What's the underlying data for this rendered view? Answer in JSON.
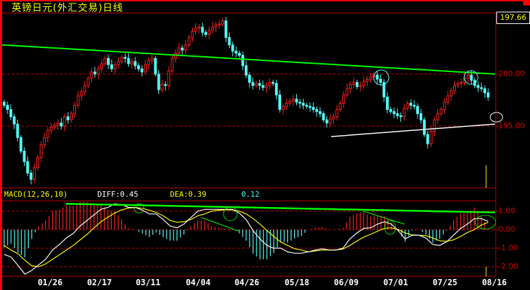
{
  "title": "英镑日元(外汇交易)日线",
  "last_price": "197.66",
  "macd_header": {
    "name": "MACD(12,26,10)",
    "diff": "DIFF:0.45",
    "dea": "DEA:0.39",
    "macd": "0.12"
  },
  "colors": {
    "up": "#ff2020",
    "down": "#54fcfc",
    "frame": "#c00000",
    "trendline": "#00ff00",
    "support": "#ffffff",
    "diff": "#ffffff",
    "dea": "#ffff00"
  },
  "chart_data": [
    {
      "type": "candlestick",
      "title": "英镑日元(外汇交易)日线",
      "x_tick_labels": [
        "01/26",
        "02/17",
        "03/11",
        "04/04",
        "04/26",
        "05/18",
        "06/09",
        "07/01",
        "07/25",
        "08/16"
      ],
      "y_tick_labels": [
        "200.00",
        "195.00"
      ],
      "ylim": [
        189.1,
        205.8
      ],
      "grid": "dashed at labeled levels",
      "close": [
        197.0,
        196.6,
        195.9,
        195.2,
        193.9,
        192.6,
        191.6,
        190.5,
        189.9,
        191.0,
        192.0,
        193.2,
        193.9,
        194.6,
        194.9,
        195.1,
        195.3,
        195.0,
        195.9,
        195.6,
        196.2,
        197.0,
        197.9,
        198.3,
        198.9,
        199.6,
        200.2,
        200.0,
        200.5,
        201.0,
        201.5,
        200.9,
        200.5,
        200.9,
        201.2,
        201.6,
        201.5,
        201.0,
        201.2,
        200.8,
        200.5,
        200.2,
        200.9,
        201.3,
        201.5,
        200.0,
        198.5,
        199.0,
        198.9,
        200.3,
        201.5,
        202.0,
        202.5,
        202.3,
        202.8,
        203.5,
        204.1,
        204.4,
        204.5,
        204.0,
        203.8,
        204.2,
        204.5,
        204.7,
        204.8,
        205.1,
        203.5,
        202.8,
        202.2,
        202.0,
        201.8,
        200.8,
        199.9,
        199.2,
        198.9,
        199.1,
        198.9,
        198.7,
        198.9,
        199.2,
        199.1,
        198.0,
        196.6,
        196.9,
        197.2,
        197.4,
        197.6,
        197.3,
        197.2,
        197.0,
        196.9,
        196.8,
        196.6,
        196.4,
        196.2,
        195.6,
        195.3,
        195.7,
        195.9,
        196.6,
        197.2,
        198.0,
        198.6,
        199.0,
        199.2,
        198.8,
        198.9,
        199.3,
        199.5,
        199.7,
        199.9,
        199.5,
        199.2,
        197.8,
        196.6,
        196.4,
        196.2,
        196.0,
        195.9,
        196.7,
        197.2,
        197.0,
        196.9,
        196.2,
        195.6,
        194.2,
        193.3,
        194.5,
        195.6,
        196.2,
        196.6,
        197.3,
        197.9,
        198.4,
        198.9,
        199.1,
        199.2,
        199.6,
        199.9,
        199.4,
        198.9,
        198.7,
        198.6,
        198.2,
        197.8
      ],
      "annotations": {
        "resistance_line": {
          "from_index": 0,
          "from_price": 202.8,
          "to_index": "end",
          "to_price": 200.0
        },
        "support_line": {
          "from_price": 194.0,
          "to_price": 195.2
        },
        "circles": [
          "top near 07/01",
          "top near 08/16",
          "projection near 195.5"
        ]
      }
    },
    {
      "type": "line",
      "title": "MACD(12,26,10)",
      "y_tick_labels": [
        "1.00",
        "0.00",
        "-1.00",
        "-2.00"
      ],
      "ylim": [
        -2.55,
        1.6
      ],
      "histogram": "2*(DIFF-DEA)",
      "series": [
        {
          "name": "DIFF",
          "values": [
            -1.33,
            -1.48,
            -1.92,
            -2.4,
            -2.2,
            -1.9,
            -1.6,
            -1.1,
            -0.8,
            -0.45,
            -0.2,
            0.2,
            0.5,
            0.8,
            1.1,
            1.2,
            1.4,
            1.35,
            1.2,
            1.2,
            1.05,
            0.85,
            0.85,
            0.55,
            0.2,
            0.1,
            0.3,
            0.65,
            1.0,
            1.1,
            1.1,
            1.1,
            1.1,
            1.1,
            0.9,
            0.55,
            -0.05,
            -0.5,
            -0.85,
            -1.0,
            -1.0,
            -1.2,
            -1.27,
            -1.27,
            -1.2,
            -1.1,
            -1.03,
            -1.1,
            -1.1,
            -1.0,
            -0.5,
            -0.18,
            0.07,
            0.1,
            0.3,
            0.43,
            0.3,
            -0.05,
            -0.5,
            -0.3,
            -0.3,
            -0.45,
            -0.8,
            -0.85,
            -0.65,
            -0.3,
            0.07,
            0.3,
            0.6,
            0.6,
            0.45
          ]
        },
        {
          "name": "DEA",
          "values": [
            -0.85,
            -1.1,
            -1.3,
            -1.65,
            -1.95,
            -2.0,
            -1.85,
            -1.6,
            -1.35,
            -1.1,
            -0.85,
            -0.55,
            -0.25,
            0.1,
            0.43,
            0.67,
            0.9,
            1.07,
            1.17,
            1.2,
            1.15,
            1.05,
            0.93,
            0.75,
            0.5,
            0.4,
            0.43,
            0.55,
            0.75,
            0.85,
            1.0,
            1.05,
            1.07,
            1.07,
            1.0,
            0.85,
            0.6,
            0.3,
            -0.05,
            -0.37,
            -0.67,
            -0.85,
            -1.03,
            -1.1,
            -1.2,
            -1.15,
            -1.1,
            -1.1,
            -1.1,
            -1.05,
            -0.85,
            -0.62,
            -0.4,
            -0.25,
            -0.08,
            0.07,
            0.1,
            0.0,
            -0.18,
            -0.28,
            -0.3,
            -0.32,
            -0.45,
            -0.6,
            -0.63,
            -0.55,
            -0.37,
            -0.15,
            0.0,
            0.25,
            0.39
          ]
        }
      ]
    }
  ]
}
